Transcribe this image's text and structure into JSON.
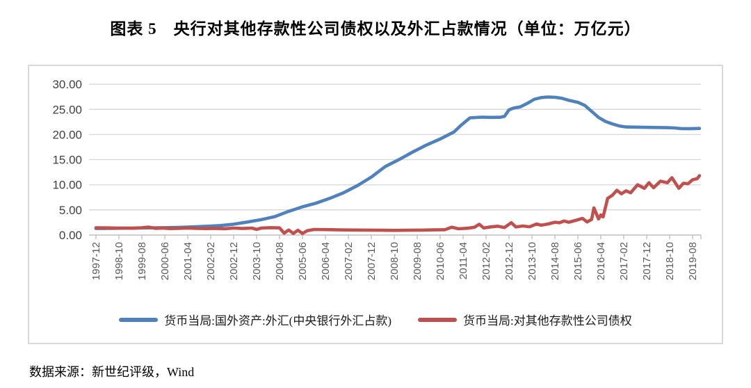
{
  "page": {
    "title": "图表 5　央行对其他存款性公司债权以及外汇占款情况（单位：万亿元）",
    "source": "数据来源：新世纪评级，Wind"
  },
  "colors": {
    "series_fx_blue": "#4F81BD",
    "series_claims_red": "#C0504D",
    "gridline": "#D9D9D9",
    "axis_line": "#BFBFBF",
    "tick_text": "#595959",
    "frame_border": "#D9D9D9"
  },
  "chart_data": {
    "type": "line",
    "title": "图表 5　央行对其他存款性公司债权以及外汇占款情况",
    "unit_label": "万亿元",
    "grid": true,
    "legend_position": "bottom",
    "ylim": [
      0,
      30
    ],
    "ytick_step": 5,
    "ytick_decimals": 2,
    "ytick_labels": [
      "0.00",
      "5.00",
      "10.00",
      "15.00",
      "20.00",
      "25.00",
      "30.00"
    ],
    "x_start": "1997-12",
    "x_end": "2019-11",
    "x_tick_interval_months": 10,
    "x_tick_labels": [
      "1997-12",
      "1998-10",
      "1999-08",
      "2000-06",
      "2001-04",
      "2002-02",
      "2002-12",
      "2003-10",
      "2004-08",
      "2005-06",
      "2006-04",
      "2007-02",
      "2007-12",
      "2008-10",
      "2009-08",
      "2010-06",
      "2011-04",
      "2012-02",
      "2012-12",
      "2013-10",
      "2014-08",
      "2015-06",
      "2016-04",
      "2017-02",
      "2017-12",
      "2018-10",
      "2019-08"
    ],
    "series": [
      {
        "name": "货币当局:国外资产:外汇(中央银行外汇占款)",
        "color": "#4F81BD",
        "points": [
          [
            "1997-12",
            1.3
          ],
          [
            "1998-06",
            1.32
          ],
          [
            "1998-12",
            1.35
          ],
          [
            "1999-06",
            1.38
          ],
          [
            "1999-12",
            1.42
          ],
          [
            "2000-06",
            1.46
          ],
          [
            "2000-12",
            1.52
          ],
          [
            "2001-06",
            1.62
          ],
          [
            "2001-12",
            1.74
          ],
          [
            "2002-06",
            1.88
          ],
          [
            "2002-12",
            2.16
          ],
          [
            "2003-06",
            2.58
          ],
          [
            "2003-12",
            3.05
          ],
          [
            "2004-06",
            3.66
          ],
          [
            "2004-12",
            4.72
          ],
          [
            "2005-06",
            5.62
          ],
          [
            "2005-12",
            6.35
          ],
          [
            "2006-06",
            7.32
          ],
          [
            "2006-12",
            8.42
          ],
          [
            "2007-06",
            9.85
          ],
          [
            "2007-12",
            11.52
          ],
          [
            "2008-06",
            13.6
          ],
          [
            "2008-12",
            15.0
          ],
          [
            "2009-06",
            16.5
          ],
          [
            "2009-12",
            17.9
          ],
          [
            "2010-06",
            19.1
          ],
          [
            "2010-12",
            20.5
          ],
          [
            "2011-03",
            21.8
          ],
          [
            "2011-07",
            23.3
          ],
          [
            "2011-12",
            23.45
          ],
          [
            "2012-04",
            23.4
          ],
          [
            "2012-08",
            23.42
          ],
          [
            "2012-10",
            23.6
          ],
          [
            "2012-12",
            24.9
          ],
          [
            "2013-02",
            25.25
          ],
          [
            "2013-05",
            25.5
          ],
          [
            "2013-08",
            26.2
          ],
          [
            "2013-11",
            27.0
          ],
          [
            "2014-02",
            27.35
          ],
          [
            "2014-05",
            27.45
          ],
          [
            "2014-08",
            27.4
          ],
          [
            "2014-11",
            27.2
          ],
          [
            "2015-02",
            26.8
          ],
          [
            "2015-06",
            26.4
          ],
          [
            "2015-09",
            25.8
          ],
          [
            "2015-12",
            24.6
          ],
          [
            "2016-03",
            23.4
          ],
          [
            "2016-06",
            22.6
          ],
          [
            "2016-09",
            22.1
          ],
          [
            "2016-12",
            21.7
          ],
          [
            "2017-03",
            21.5
          ],
          [
            "2017-09",
            21.45
          ],
          [
            "2018-03",
            21.4
          ],
          [
            "2018-09",
            21.35
          ],
          [
            "2018-12",
            21.3
          ],
          [
            "2019-03",
            21.18
          ],
          [
            "2019-07",
            21.15
          ],
          [
            "2019-11",
            21.2
          ]
        ]
      },
      {
        "name": "货币当局:对其他存款性公司债权",
        "color": "#C0504D",
        "points": [
          [
            "1997-12",
            1.45
          ],
          [
            "1998-04",
            1.42
          ],
          [
            "1998-08",
            1.4
          ],
          [
            "1998-12",
            1.38
          ],
          [
            "1999-04",
            1.35
          ],
          [
            "1999-08",
            1.45
          ],
          [
            "1999-11",
            1.58
          ],
          [
            "2000-02",
            1.32
          ],
          [
            "2000-05",
            1.4
          ],
          [
            "2000-08",
            1.28
          ],
          [
            "2000-12",
            1.33
          ],
          [
            "2001-04",
            1.38
          ],
          [
            "2001-08",
            1.32
          ],
          [
            "2001-12",
            1.28
          ],
          [
            "2002-04",
            1.33
          ],
          [
            "2002-08",
            1.26
          ],
          [
            "2002-12",
            1.38
          ],
          [
            "2003-04",
            1.3
          ],
          [
            "2003-08",
            1.38
          ],
          [
            "2003-10",
            1.12
          ],
          [
            "2003-12",
            1.38
          ],
          [
            "2004-04",
            1.46
          ],
          [
            "2004-08",
            1.42
          ],
          [
            "2004-10",
            0.38
          ],
          [
            "2004-12",
            1.0
          ],
          [
            "2005-02",
            0.32
          ],
          [
            "2005-04",
            0.95
          ],
          [
            "2005-06",
            0.3
          ],
          [
            "2005-08",
            0.85
          ],
          [
            "2005-11",
            1.1
          ],
          [
            "2006-04",
            1.08
          ],
          [
            "2006-10",
            1.02
          ],
          [
            "2007-04",
            1.0
          ],
          [
            "2007-10",
            0.98
          ],
          [
            "2008-04",
            0.95
          ],
          [
            "2008-10",
            0.92
          ],
          [
            "2009-04",
            0.95
          ],
          [
            "2009-10",
            0.98
          ],
          [
            "2010-03",
            1.02
          ],
          [
            "2010-08",
            1.05
          ],
          [
            "2010-11",
            1.55
          ],
          [
            "2011-02",
            1.25
          ],
          [
            "2011-06",
            1.35
          ],
          [
            "2011-09",
            1.55
          ],
          [
            "2011-11",
            2.15
          ],
          [
            "2012-01",
            1.4
          ],
          [
            "2012-04",
            1.62
          ],
          [
            "2012-07",
            1.75
          ],
          [
            "2012-10",
            1.5
          ],
          [
            "2013-01",
            2.45
          ],
          [
            "2013-03",
            1.6
          ],
          [
            "2013-06",
            1.8
          ],
          [
            "2013-09",
            1.65
          ],
          [
            "2013-12",
            2.2
          ],
          [
            "2014-02",
            1.95
          ],
          [
            "2014-05",
            2.2
          ],
          [
            "2014-08",
            2.55
          ],
          [
            "2014-10",
            2.45
          ],
          [
            "2014-12",
            2.8
          ],
          [
            "2015-02",
            2.55
          ],
          [
            "2015-05",
            2.9
          ],
          [
            "2015-08",
            3.3
          ],
          [
            "2015-10",
            2.6
          ],
          [
            "2015-12",
            3.1
          ],
          [
            "2016-01",
            5.4
          ],
          [
            "2016-03",
            3.2
          ],
          [
            "2016-04",
            4.0
          ],
          [
            "2016-05",
            3.6
          ],
          [
            "2016-07",
            7.3
          ],
          [
            "2016-09",
            7.9
          ],
          [
            "2016-11",
            8.9
          ],
          [
            "2017-01",
            8.2
          ],
          [
            "2017-03",
            8.8
          ],
          [
            "2017-05",
            8.4
          ],
          [
            "2017-08",
            10.0
          ],
          [
            "2017-11",
            9.3
          ],
          [
            "2018-01",
            10.4
          ],
          [
            "2018-03",
            9.4
          ],
          [
            "2018-06",
            10.7
          ],
          [
            "2018-09",
            10.4
          ],
          [
            "2018-11",
            11.4
          ],
          [
            "2019-02",
            9.3
          ],
          [
            "2019-04",
            10.3
          ],
          [
            "2019-06",
            10.2
          ],
          [
            "2019-08",
            11.0
          ],
          [
            "2019-10",
            11.2
          ],
          [
            "2019-11",
            11.8
          ]
        ]
      }
    ]
  }
}
